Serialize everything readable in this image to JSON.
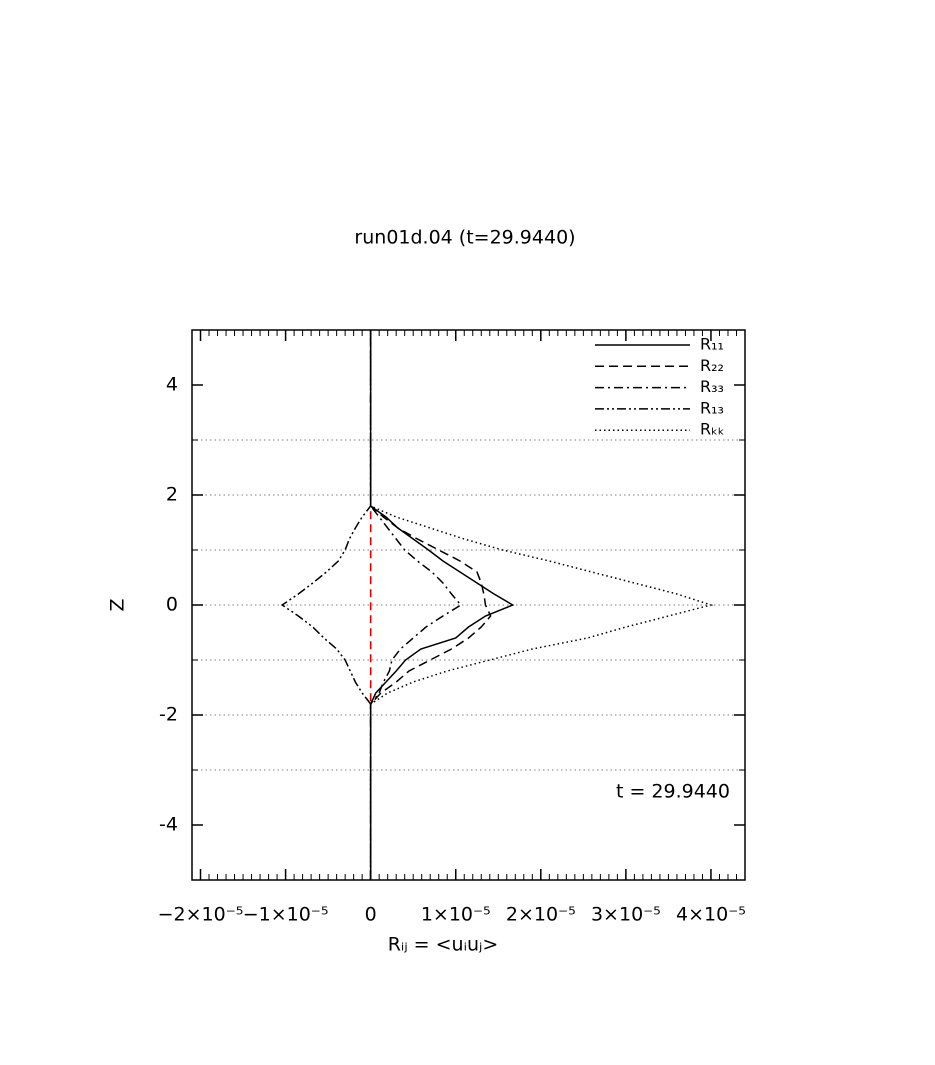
{
  "chart_data": {
    "type": "line",
    "title": "run01d.04 (t=29.9440)",
    "x_label": "Rᵢⱼ = <uᵢuⱼ>",
    "y_label": "Z",
    "annotation": "t = 29.9440",
    "xlim": [
      -2.1e-05,
      4.4e-05
    ],
    "ylim": [
      -5,
      5
    ],
    "xticks": [
      {
        "value": -2e-05,
        "label": "−2×10⁻⁵"
      },
      {
        "value": -1e-05,
        "label": "−1×10⁻⁵"
      },
      0,
      {
        "value": 1e-05,
        "label": "1×10⁻⁵"
      },
      {
        "value": 2e-05,
        "label": "2×10⁻⁵"
      },
      {
        "value": 3e-05,
        "label": "3×10⁻⁵"
      },
      {
        "value": 4e-05,
        "label": "4×10⁻⁵"
      }
    ],
    "yticks": [
      -4,
      -2,
      0,
      2,
      4
    ],
    "x_minor_per_major": 10,
    "y_minor_per_major": 2,
    "hlines": [
      -3,
      -2,
      -1,
      0,
      1,
      2,
      3
    ],
    "hline_color": "#999999",
    "vline": {
      "x": 0,
      "z": [
        -1.75,
        1.75
      ],
      "color": "#e00000"
    },
    "legend": "upper right",
    "z": [
      -5,
      -1.8,
      -1.6,
      -1.4,
      -1.2,
      -1.0,
      -0.8,
      -0.6,
      -0.4,
      -0.2,
      0,
      0.2,
      0.4,
      0.6,
      0.8,
      1.0,
      1.2,
      1.4,
      1.6,
      1.8,
      5
    ],
    "series": [
      {
        "name": "R₁₁",
        "color": "#000000",
        "dash": "solid",
        "values": [
          0,
          0,
          6e-07,
          1.8e-06,
          3e-06,
          4.1e-06,
          5.9e-06,
          1e-05,
          1.15e-05,
          1.35e-05,
          1.67e-05,
          1.45e-05,
          1.25e-05,
          1.05e-05,
          8.5e-06,
          6.8e-06,
          5e-06,
          3.2e-06,
          1.8e-06,
          0,
          0
        ]
      },
      {
        "name": "R₂₂",
        "color": "#000000",
        "dash": "dashed",
        "values": [
          0,
          0,
          1.2e-06,
          3e-06,
          4.5e-06,
          7e-06,
          9.5e-06,
          1.15e-05,
          1.3e-05,
          1.41e-05,
          1.35e-05,
          1.33e-05,
          1.3e-05,
          1.25e-05,
          1.05e-05,
          8e-06,
          5.5e-06,
          3.2e-06,
          1.5e-06,
          0,
          0
        ]
      },
      {
        "name": "R₃₃",
        "color": "#000000",
        "dash": "dashdot",
        "values": [
          0,
          0,
          1e-06,
          1.5e-06,
          2.2e-06,
          2.5e-06,
          3.5e-06,
          5e-06,
          6.5e-06,
          8.5e-06,
          1.06e-05,
          9.5e-06,
          8.5e-06,
          7.2e-06,
          5.5e-06,
          4e-06,
          3e-06,
          2e-06,
          1e-06,
          0,
          0
        ]
      },
      {
        "name": "R₁₃",
        "color": "#000000",
        "dash": "dashdotdot",
        "values": [
          0,
          0,
          -1e-06,
          -1.8e-06,
          -2.4e-06,
          -3e-06,
          -4e-06,
          -5.5e-06,
          -6.8e-06,
          -8.5e-06,
          -1.04e-05,
          -8.5e-06,
          -6.8e-06,
          -5.2e-06,
          -3.8e-06,
          -3e-06,
          -2.5e-06,
          -1.8e-06,
          -1e-06,
          0,
          0
        ]
      },
      {
        "name": "Rₖₖ",
        "color": "#000000",
        "dash": "dotted",
        "values": [
          0,
          0,
          2e-06,
          5e-06,
          9e-06,
          1.4e-05,
          1.9e-05,
          2.55e-05,
          3e-05,
          3.5e-05,
          4e-05,
          3.6e-05,
          3.1e-05,
          2.6e-05,
          2.1e-05,
          1.55e-05,
          1.1e-05,
          7e-06,
          3e-06,
          0,
          0
        ]
      }
    ]
  }
}
